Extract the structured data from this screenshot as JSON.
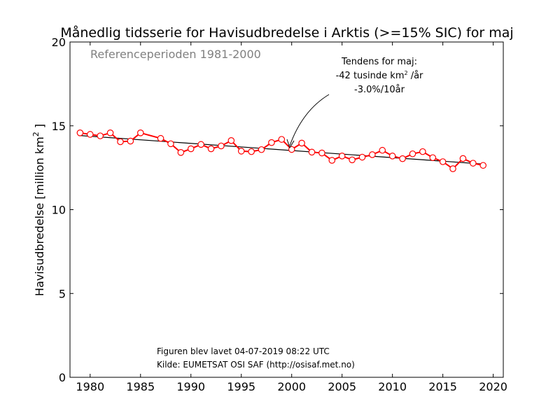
{
  "chart_data": {
    "type": "line",
    "title": "Månedlig tidsserie for Havisudbredelse i Arktis (>=15% SIC) for maj",
    "reference_period": "Referenceperioden 1981-2000",
    "ylabel_prefix": "Havisudbredelse [million km",
    "ylabel_sup": "2",
    "ylabel_suffix": " ]",
    "xlim": [
      1978,
      2021
    ],
    "ylim": [
      0,
      20
    ],
    "xticks": [
      1980,
      1985,
      1990,
      1995,
      2000,
      2005,
      2010,
      2015,
      2020
    ],
    "yticks": [
      0,
      5,
      10,
      15,
      20
    ],
    "grid": false,
    "series": [
      {
        "color": "#ff0000",
        "x": [
          1979,
          1980,
          1981,
          1982,
          1983,
          1984,
          1985,
          1987,
          1988,
          1989,
          1990,
          1991,
          1992,
          1993,
          1994,
          1995,
          1996,
          1997,
          1998,
          1999,
          2000,
          2001,
          2002,
          2003,
          2004,
          2005,
          2006,
          2007,
          2008,
          2009,
          2010,
          2011,
          2012,
          2013,
          2014,
          2015,
          2016,
          2017,
          2018,
          2019
        ],
        "y": [
          14.58,
          14.49,
          14.4,
          14.58,
          14.05,
          14.09,
          14.58,
          14.25,
          13.93,
          13.41,
          13.63,
          13.89,
          13.63,
          13.8,
          14.12,
          13.49,
          13.46,
          13.58,
          14.0,
          14.19,
          13.59,
          13.97,
          13.43,
          13.38,
          12.94,
          13.2,
          12.97,
          13.13,
          13.28,
          13.54,
          13.2,
          13.04,
          13.33,
          13.46,
          13.1,
          12.86,
          12.44,
          13.05,
          12.77,
          12.64
        ]
      }
    ],
    "trend": {
      "color": "#000000",
      "x": [
        1979,
        2019
      ],
      "y": [
        14.42,
        12.72
      ]
    },
    "annotation": {
      "line1": "Tendens for maj:",
      "line2_prefix": "-42 tusinde km",
      "line2_sup": "2",
      "line2_suffix": " /år",
      "line3": "-3.0%/10år"
    },
    "footer": {
      "line1": "Figuren blev lavet 04-07-2019 08:22 UTC",
      "line2": "Kilde: EUMETSAT OSI SAF (http://osisaf.met.no)"
    }
  }
}
